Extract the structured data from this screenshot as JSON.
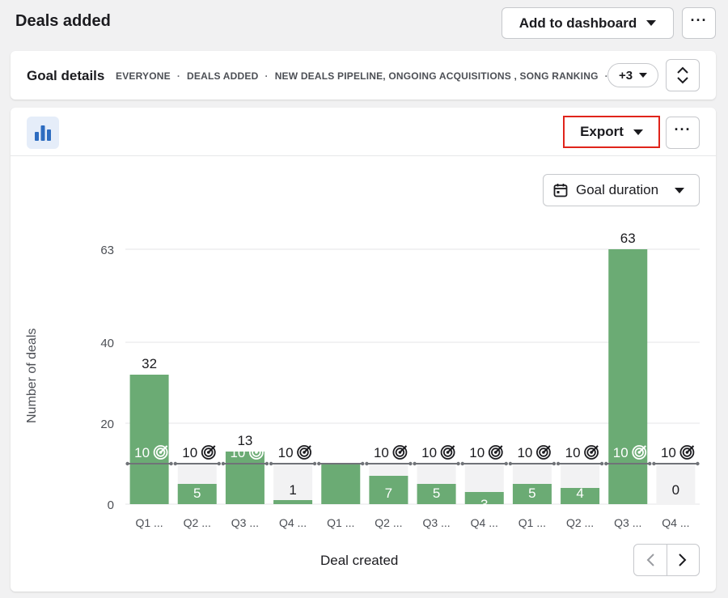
{
  "header": {
    "title": "Deals added",
    "add_to_dashboard_label": "Add to dashboard",
    "more_label": "···"
  },
  "goal_details": {
    "title": "Goal details",
    "filters": [
      "EVERYONE",
      "DEALS ADDED",
      "NEW DEALS PIPELINE, ONGOING ACQUISITIONS , SONG RANKING"
    ],
    "separator": "·",
    "overflow_count": "+3"
  },
  "chart_toolbar": {
    "export_label": "Export",
    "more_label": "···",
    "goal_duration_label": "Goal duration"
  },
  "colors": {
    "bar_fill": "#6bab74",
    "bar_bg": "#f2f2f3",
    "goal_line": "#707378",
    "accent_blue": "#2d6cc0",
    "highlight_red": "#e0241b"
  },
  "icons": {
    "chart_type": "bar-chart-icon",
    "calendar": "calendar-icon",
    "target": "target-icon",
    "expand": "expand-collapse-icon",
    "prev": "chevron-left-icon",
    "next": "chevron-right-icon"
  },
  "chart_data": {
    "type": "bar",
    "ylabel": "Number of deals",
    "xlabel": "Deal created",
    "ylim": [
      0,
      63
    ],
    "y_ticks": [
      0,
      20,
      40,
      63
    ],
    "goal": 10,
    "grid": true,
    "categories": [
      "Q1 ...",
      "Q2 ...",
      "Q3 ...",
      "Q4 ...",
      "Q1 ...",
      "Q2 ...",
      "Q3 ...",
      "Q4 ...",
      "Q1 ...",
      "Q2 ...",
      "Q3 ...",
      "Q4 ..."
    ],
    "values": [
      32,
      5,
      13,
      1,
      10,
      7,
      5,
      3,
      5,
      4,
      63,
      0
    ],
    "value_labels": [
      "32",
      "5",
      "13",
      "1",
      "10",
      "7",
      "5",
      "3",
      "5",
      "4",
      "63",
      "0"
    ],
    "goal_label": "10"
  }
}
